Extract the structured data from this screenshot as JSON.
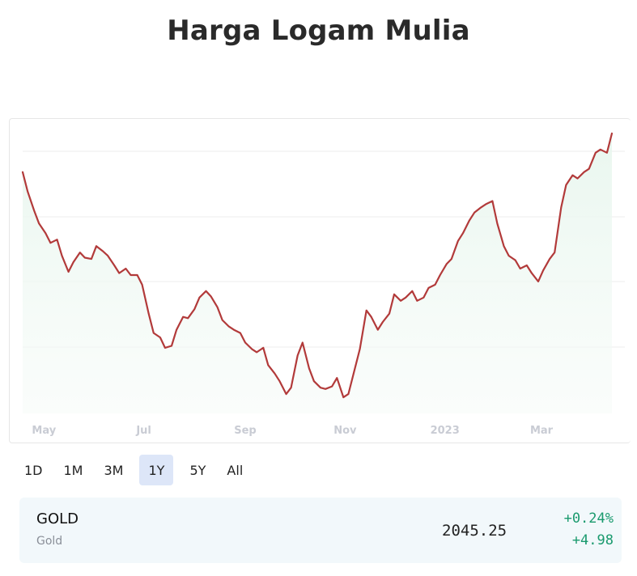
{
  "page": {
    "title": "Harga Logam Mulia"
  },
  "range_buttons": [
    {
      "label": "1D",
      "active": false
    },
    {
      "label": "1M",
      "active": false
    },
    {
      "label": "3M",
      "active": false
    },
    {
      "label": "1Y",
      "active": true
    },
    {
      "label": "5Y",
      "active": false
    },
    {
      "label": "All",
      "active": false
    }
  ],
  "quote": {
    "symbol": "GOLD",
    "name": "Gold",
    "price": "2045.25",
    "change_percent": "+0.24%",
    "change_abs": "+4.98"
  },
  "colors": {
    "line": "#b23a3a",
    "area_top": "#e8f6ee",
    "positive": "#1a9a6e",
    "active_button": "#dde6f8",
    "quote_background": "#f2f8fb"
  },
  "chart_data": {
    "type": "area",
    "grid": true,
    "y_axis_labels_shown": false,
    "x_tick_labels": [
      {
        "date": "2022-05-01",
        "label": "May"
      },
      {
        "date": "2022-07-01",
        "label": "Jul"
      },
      {
        "date": "2022-09-01",
        "label": "Sep"
      },
      {
        "date": "2022-11-01",
        "label": "Nov"
      },
      {
        "date": "2023-01-01",
        "label": "2023"
      },
      {
        "date": "2023-03-01",
        "label": "Mar"
      }
    ],
    "x_range": [
      "2022-04-18",
      "2023-04-14"
    ],
    "ylim": [
      1610,
      2060
    ],
    "series": [
      {
        "x": [
          "2022-04-18",
          "2022-04-21",
          "2022-04-25",
          "2022-04-28",
          "2022-05-02",
          "2022-05-05",
          "2022-05-09",
          "2022-05-12",
          "2022-05-16",
          "2022-05-19",
          "2022-05-23",
          "2022-05-26",
          "2022-05-30",
          "2022-06-02",
          "2022-06-06",
          "2022-06-09",
          "2022-06-13",
          "2022-06-16",
          "2022-06-20",
          "2022-06-23",
          "2022-06-27",
          "2022-06-30",
          "2022-07-04",
          "2022-07-07",
          "2022-07-11",
          "2022-07-14",
          "2022-07-18",
          "2022-07-21",
          "2022-07-25",
          "2022-07-28",
          "2022-08-01",
          "2022-08-04",
          "2022-08-08",
          "2022-08-11",
          "2022-08-15",
          "2022-08-18",
          "2022-08-22",
          "2022-08-25",
          "2022-08-29",
          "2022-09-01",
          "2022-09-05",
          "2022-09-08",
          "2022-09-12",
          "2022-09-15",
          "2022-09-19",
          "2022-09-22",
          "2022-09-26",
          "2022-09-29",
          "2022-10-03",
          "2022-10-06",
          "2022-10-10",
          "2022-10-13",
          "2022-10-17",
          "2022-10-20",
          "2022-10-24",
          "2022-10-27",
          "2022-10-31",
          "2022-11-03",
          "2022-11-07",
          "2022-11-10",
          "2022-11-14",
          "2022-11-17",
          "2022-11-21",
          "2022-11-24",
          "2022-11-28",
          "2022-12-01",
          "2022-12-05",
          "2022-12-08",
          "2022-12-12",
          "2022-12-15",
          "2022-12-19",
          "2022-12-22",
          "2022-12-26",
          "2022-12-29",
          "2023-01-02",
          "2023-01-05",
          "2023-01-09",
          "2023-01-12",
          "2023-01-16",
          "2023-01-19",
          "2023-01-23",
          "2023-01-26",
          "2023-01-30",
          "2023-02-02",
          "2023-02-06",
          "2023-02-09",
          "2023-02-13",
          "2023-02-16",
          "2023-02-20",
          "2023-02-23",
          "2023-02-27",
          "2023-03-02",
          "2023-03-06",
          "2023-03-09",
          "2023-03-13",
          "2023-03-16",
          "2023-03-20",
          "2023-03-23",
          "2023-03-27",
          "2023-03-30",
          "2023-04-03",
          "2023-04-06",
          "2023-04-10",
          "2023-04-13"
        ],
        "values": [
          1985,
          1955,
          1925,
          1905,
          1890,
          1875,
          1880,
          1855,
          1830,
          1845,
          1860,
          1852,
          1850,
          1870,
          1862,
          1855,
          1840,
          1828,
          1835,
          1825,
          1825,
          1810,
          1765,
          1735,
          1728,
          1712,
          1715,
          1740,
          1760,
          1758,
          1772,
          1790,
          1800,
          1792,
          1775,
          1755,
          1745,
          1740,
          1735,
          1720,
          1710,
          1705,
          1712,
          1685,
          1672,
          1660,
          1640,
          1650,
          1700,
          1720,
          1680,
          1660,
          1650,
          1648,
          1652,
          1665,
          1635,
          1640,
          1680,
          1710,
          1770,
          1760,
          1740,
          1752,
          1765,
          1795,
          1785,
          1790,
          1800,
          1785,
          1790,
          1805,
          1810,
          1825,
          1842,
          1850,
          1878,
          1890,
          1910,
          1922,
          1930,
          1935,
          1940,
          1905,
          1870,
          1855,
          1848,
          1835,
          1840,
          1828,
          1815,
          1832,
          1850,
          1860,
          1930,
          1965,
          1980,
          1975,
          1985,
          1990,
          2015,
          2020,
          2015,
          2045
        ]
      }
    ]
  }
}
